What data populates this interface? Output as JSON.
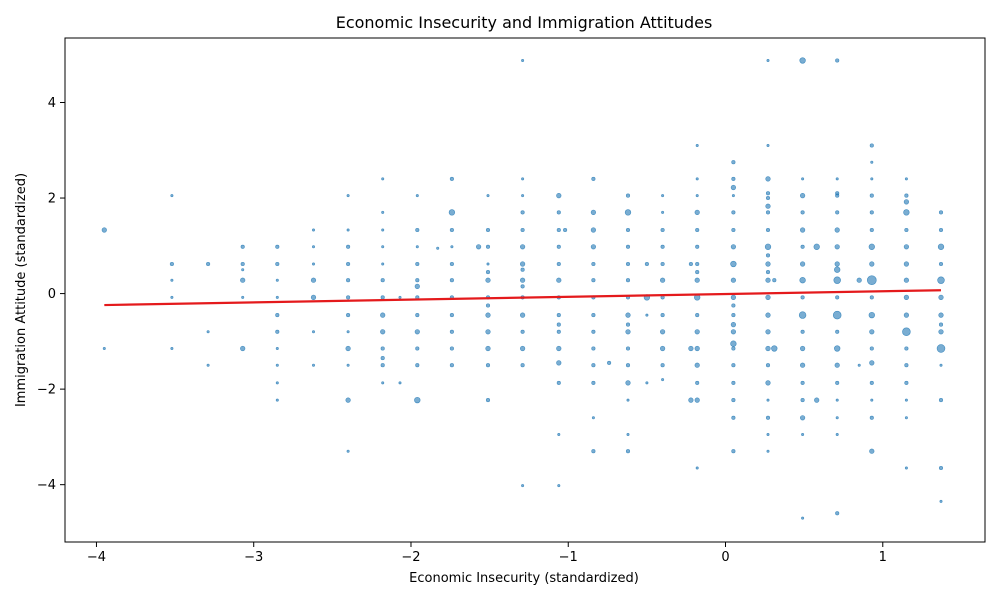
{
  "chart_data": {
    "type": "scatter",
    "title": "Economic Insecurity and Immigration Attitudes",
    "xlabel": "Economic Insecurity (standardized)",
    "ylabel": "Immigration Attitude (standardized)",
    "xlim": [
      -4.2,
      1.65
    ],
    "ylim": [
      -5.2,
      5.35
    ],
    "xticks": [
      -4,
      -3,
      -2,
      -1,
      0,
      1
    ],
    "yticks": [
      -4,
      -2,
      0,
      2,
      4
    ],
    "xtick_labels": [
      "−4",
      "−3",
      "−2",
      "−1",
      "0",
      "1"
    ],
    "ytick_labels": [
      "−4",
      "−2",
      "0",
      "2",
      "4"
    ],
    "grid": false,
    "point_color": "#1f77b4",
    "line_color": "#e41a1c",
    "points": [
      [
        -3.95,
        1.33,
        3
      ],
      [
        -3.95,
        -1.15,
        1
      ],
      [
        -3.52,
        2.05,
        1
      ],
      [
        -3.52,
        0.62,
        2
      ],
      [
        -3.52,
        0.28,
        1
      ],
      [
        -3.52,
        -0.08,
        1
      ],
      [
        -3.52,
        -1.15,
        1
      ],
      [
        -3.29,
        0.62,
        2
      ],
      [
        -3.29,
        -0.8,
        1
      ],
      [
        -3.29,
        -1.5,
        1
      ],
      [
        -3.07,
        0.98,
        2
      ],
      [
        -3.07,
        0.62,
        2
      ],
      [
        -3.07,
        0.5,
        1
      ],
      [
        -3.07,
        0.28,
        3
      ],
      [
        -3.07,
        -0.08,
        1
      ],
      [
        -3.07,
        -1.15,
        3
      ],
      [
        -2.85,
        0.98,
        2
      ],
      [
        -2.85,
        0.62,
        2
      ],
      [
        -2.85,
        0.28,
        1
      ],
      [
        -2.85,
        -0.08,
        1
      ],
      [
        -2.85,
        -0.45,
        2
      ],
      [
        -2.85,
        -0.8,
        2
      ],
      [
        -2.85,
        -1.15,
        1
      ],
      [
        -2.85,
        -1.5,
        1
      ],
      [
        -2.85,
        -1.87,
        1
      ],
      [
        -2.85,
        -2.23,
        1
      ],
      [
        -2.62,
        1.33,
        1
      ],
      [
        -2.62,
        0.98,
        1
      ],
      [
        -2.62,
        0.62,
        1
      ],
      [
        -2.62,
        0.28,
        3
      ],
      [
        -2.62,
        -0.08,
        3
      ],
      [
        -2.62,
        -0.8,
        1
      ],
      [
        -2.62,
        -1.5,
        1
      ],
      [
        -2.4,
        2.05,
        1
      ],
      [
        -2.4,
        1.33,
        1
      ],
      [
        -2.4,
        0.98,
        2
      ],
      [
        -2.4,
        0.62,
        2
      ],
      [
        -2.4,
        0.28,
        2
      ],
      [
        -2.4,
        -0.08,
        2
      ],
      [
        -2.4,
        -0.45,
        2
      ],
      [
        -2.4,
        -0.8,
        1
      ],
      [
        -2.4,
        -1.15,
        3
      ],
      [
        -2.4,
        -1.5,
        1
      ],
      [
        -2.4,
        -2.23,
        3
      ],
      [
        -2.4,
        -3.3,
        1
      ],
      [
        -2.18,
        2.4,
        1
      ],
      [
        -2.18,
        1.7,
        1
      ],
      [
        -2.18,
        1.33,
        1
      ],
      [
        -2.18,
        0.98,
        1
      ],
      [
        -2.18,
        0.62,
        1
      ],
      [
        -2.18,
        0.28,
        2
      ],
      [
        -2.18,
        -0.08,
        2
      ],
      [
        -2.18,
        -0.45,
        3
      ],
      [
        -2.18,
        -0.8,
        3
      ],
      [
        -2.18,
        -1.15,
        2
      ],
      [
        -2.18,
        -1.35,
        2
      ],
      [
        -2.18,
        -1.5,
        2
      ],
      [
        -2.18,
        -1.87,
        1
      ],
      [
        -2.07,
        -0.08,
        1
      ],
      [
        -2.07,
        -1.87,
        1
      ],
      [
        -1.96,
        2.05,
        1
      ],
      [
        -1.96,
        1.33,
        2
      ],
      [
        -1.96,
        0.98,
        1
      ],
      [
        -1.96,
        0.62,
        2
      ],
      [
        -1.96,
        0.28,
        2
      ],
      [
        -1.96,
        0.15,
        3
      ],
      [
        -1.96,
        -0.08,
        2
      ],
      [
        -1.96,
        -0.45,
        2
      ],
      [
        -1.96,
        -0.8,
        3
      ],
      [
        -1.96,
        -1.15,
        2
      ],
      [
        -1.96,
        -1.5,
        2
      ],
      [
        -1.96,
        -2.23,
        4
      ],
      [
        -1.83,
        0.95,
        1
      ],
      [
        -1.74,
        2.4,
        2
      ],
      [
        -1.74,
        1.7,
        4
      ],
      [
        -1.74,
        1.33,
        2
      ],
      [
        -1.74,
        0.98,
        1
      ],
      [
        -1.74,
        0.62,
        2
      ],
      [
        -1.74,
        0.28,
        2
      ],
      [
        -1.74,
        -0.08,
        2
      ],
      [
        -1.74,
        -0.45,
        2
      ],
      [
        -1.74,
        -0.8,
        2
      ],
      [
        -1.74,
        -1.15,
        2
      ],
      [
        -1.74,
        -1.5,
        2
      ],
      [
        -1.57,
        0.98,
        3
      ],
      [
        -1.51,
        2.05,
        1
      ],
      [
        -1.51,
        1.33,
        2
      ],
      [
        -1.51,
        0.98,
        2
      ],
      [
        -1.51,
        0.62,
        1
      ],
      [
        -1.51,
        0.45,
        2
      ],
      [
        -1.51,
        0.28,
        3
      ],
      [
        -1.51,
        -0.08,
        2
      ],
      [
        -1.51,
        -0.25,
        2
      ],
      [
        -1.51,
        -0.45,
        3
      ],
      [
        -1.51,
        -0.8,
        3
      ],
      [
        -1.51,
        -1.15,
        3
      ],
      [
        -1.51,
        -1.5,
        2
      ],
      [
        -1.51,
        -2.23,
        2
      ],
      [
        -1.29,
        4.88,
        1
      ],
      [
        -1.29,
        2.4,
        1
      ],
      [
        -1.29,
        2.05,
        1
      ],
      [
        -1.29,
        1.7,
        2
      ],
      [
        -1.29,
        1.33,
        2
      ],
      [
        -1.29,
        0.98,
        3
      ],
      [
        -1.29,
        0.62,
        3
      ],
      [
        -1.29,
        0.5,
        2
      ],
      [
        -1.29,
        0.28,
        3
      ],
      [
        -1.29,
        0.15,
        2
      ],
      [
        -1.29,
        -0.08,
        2
      ],
      [
        -1.29,
        -0.45,
        3
      ],
      [
        -1.29,
        -0.8,
        2
      ],
      [
        -1.29,
        -1.15,
        3
      ],
      [
        -1.29,
        -1.5,
        2
      ],
      [
        -1.29,
        -4.02,
        1
      ],
      [
        -1.06,
        2.05,
        3
      ],
      [
        -1.06,
        1.7,
        2
      ],
      [
        -1.06,
        1.33,
        2
      ],
      [
        -1.06,
        0.98,
        2
      ],
      [
        -1.06,
        0.62,
        2
      ],
      [
        -1.06,
        0.28,
        3
      ],
      [
        -1.06,
        -0.08,
        2
      ],
      [
        -1.06,
        -0.45,
        2
      ],
      [
        -1.06,
        -0.65,
        2
      ],
      [
        -1.06,
        -0.8,
        2
      ],
      [
        -1.06,
        -1.15,
        3
      ],
      [
        -1.06,
        -1.45,
        3
      ],
      [
        -1.06,
        -1.87,
        2
      ],
      [
        -1.06,
        -2.95,
        1
      ],
      [
        -1.06,
        -4.02,
        1
      ],
      [
        -1.02,
        1.33,
        2
      ],
      [
        -0.84,
        2.4,
        2
      ],
      [
        -0.84,
        1.7,
        3
      ],
      [
        -0.84,
        1.33,
        3
      ],
      [
        -0.84,
        0.98,
        3
      ],
      [
        -0.84,
        0.62,
        2
      ],
      [
        -0.84,
        0.28,
        2
      ],
      [
        -0.84,
        -0.08,
        2
      ],
      [
        -0.84,
        -0.45,
        2
      ],
      [
        -0.84,
        -0.8,
        2
      ],
      [
        -0.84,
        -1.15,
        2
      ],
      [
        -0.84,
        -1.5,
        2
      ],
      [
        -0.84,
        -1.87,
        2
      ],
      [
        -0.84,
        -2.6,
        1
      ],
      [
        -0.84,
        -3.3,
        2
      ],
      [
        -0.74,
        -1.45,
        2
      ],
      [
        -0.62,
        2.05,
        2
      ],
      [
        -0.62,
        1.7,
        4
      ],
      [
        -0.62,
        1.33,
        2
      ],
      [
        -0.62,
        0.98,
        2
      ],
      [
        -0.62,
        0.62,
        2
      ],
      [
        -0.62,
        0.28,
        2
      ],
      [
        -0.62,
        -0.08,
        2
      ],
      [
        -0.62,
        -0.45,
        3
      ],
      [
        -0.62,
        -0.65,
        2
      ],
      [
        -0.62,
        -0.8,
        3
      ],
      [
        -0.62,
        -1.15,
        2
      ],
      [
        -0.62,
        -1.5,
        2
      ],
      [
        -0.62,
        -1.87,
        3
      ],
      [
        -0.62,
        -2.23,
        1
      ],
      [
        -0.62,
        -2.95,
        1
      ],
      [
        -0.62,
        -3.3,
        2
      ],
      [
        -0.5,
        0.62,
        2
      ],
      [
        -0.5,
        -0.08,
        4
      ],
      [
        -0.5,
        -0.45,
        1
      ],
      [
        -0.5,
        -1.87,
        1
      ],
      [
        -0.4,
        2.05,
        1
      ],
      [
        -0.4,
        1.7,
        1
      ],
      [
        -0.4,
        1.33,
        2
      ],
      [
        -0.4,
        0.98,
        2
      ],
      [
        -0.4,
        0.62,
        2
      ],
      [
        -0.4,
        0.28,
        3
      ],
      [
        -0.4,
        -0.08,
        2
      ],
      [
        -0.4,
        -0.45,
        2
      ],
      [
        -0.4,
        -0.8,
        3
      ],
      [
        -0.4,
        -1.15,
        3
      ],
      [
        -0.4,
        -1.5,
        2
      ],
      [
        -0.4,
        -1.8,
        1
      ],
      [
        -0.22,
        0.62,
        2
      ],
      [
        -0.22,
        -1.15,
        3
      ],
      [
        -0.22,
        -2.23,
        3
      ],
      [
        -0.18,
        3.1,
        1
      ],
      [
        -0.18,
        2.4,
        1
      ],
      [
        -0.18,
        2.05,
        1
      ],
      [
        -0.18,
        1.7,
        3
      ],
      [
        -0.18,
        1.33,
        2
      ],
      [
        -0.18,
        0.98,
        2
      ],
      [
        -0.18,
        0.62,
        2
      ],
      [
        -0.18,
        0.45,
        2
      ],
      [
        -0.18,
        0.28,
        3
      ],
      [
        -0.18,
        -0.08,
        4
      ],
      [
        -0.18,
        -0.45,
        2
      ],
      [
        -0.18,
        -0.8,
        3
      ],
      [
        -0.18,
        -1.15,
        3
      ],
      [
        -0.18,
        -1.5,
        3
      ],
      [
        -0.18,
        -1.87,
        2
      ],
      [
        -0.18,
        -2.23,
        3
      ],
      [
        -0.18,
        -3.65,
        1
      ],
      [
        0.05,
        2.75,
        2
      ],
      [
        0.05,
        2.4,
        2
      ],
      [
        0.05,
        2.22,
        3
      ],
      [
        0.05,
        2.05,
        1
      ],
      [
        0.05,
        1.7,
        2
      ],
      [
        0.05,
        1.33,
        2
      ],
      [
        0.05,
        0.98,
        3
      ],
      [
        0.05,
        0.62,
        4
      ],
      [
        0.05,
        0.28,
        3
      ],
      [
        0.05,
        -0.08,
        3
      ],
      [
        0.05,
        -0.25,
        2
      ],
      [
        0.05,
        -0.45,
        2
      ],
      [
        0.05,
        -0.65,
        3
      ],
      [
        0.05,
        -0.8,
        3
      ],
      [
        0.05,
        -1.05,
        4
      ],
      [
        0.05,
        -1.15,
        2
      ],
      [
        0.05,
        -1.5,
        2
      ],
      [
        0.05,
        -1.87,
        2
      ],
      [
        0.05,
        -2.23,
        2
      ],
      [
        0.05,
        -2.6,
        2
      ],
      [
        0.05,
        -3.3,
        2
      ],
      [
        0.27,
        4.88,
        1
      ],
      [
        0.27,
        3.1,
        1
      ],
      [
        0.27,
        2.4,
        3
      ],
      [
        0.27,
        2.1,
        2
      ],
      [
        0.27,
        2.0,
        2
      ],
      [
        0.27,
        1.83,
        3
      ],
      [
        0.27,
        1.7,
        2
      ],
      [
        0.27,
        1.33,
        2
      ],
      [
        0.27,
        0.98,
        4
      ],
      [
        0.27,
        0.8,
        2
      ],
      [
        0.27,
        0.62,
        3
      ],
      [
        0.27,
        0.45,
        2
      ],
      [
        0.27,
        0.28,
        3
      ],
      [
        0.27,
        -0.08,
        3
      ],
      [
        0.27,
        -0.45,
        3
      ],
      [
        0.27,
        -0.8,
        3
      ],
      [
        0.27,
        -1.15,
        3
      ],
      [
        0.27,
        -1.5,
        2
      ],
      [
        0.27,
        -1.87,
        3
      ],
      [
        0.27,
        -2.23,
        1
      ],
      [
        0.27,
        -2.6,
        2
      ],
      [
        0.27,
        -2.95,
        1
      ],
      [
        0.27,
        -3.3,
        1
      ],
      [
        0.31,
        0.28,
        2
      ],
      [
        0.31,
        -1.15,
        4
      ],
      [
        0.49,
        4.88,
        4
      ],
      [
        0.49,
        2.4,
        1
      ],
      [
        0.49,
        2.05,
        3
      ],
      [
        0.49,
        1.7,
        2
      ],
      [
        0.49,
        1.33,
        3
      ],
      [
        0.49,
        0.98,
        2
      ],
      [
        0.49,
        0.62,
        3
      ],
      [
        0.49,
        0.28,
        4
      ],
      [
        0.49,
        -0.08,
        2
      ],
      [
        0.49,
        -0.45,
        5
      ],
      [
        0.49,
        -0.8,
        2
      ],
      [
        0.49,
        -1.15,
        3
      ],
      [
        0.49,
        -1.5,
        3
      ],
      [
        0.49,
        -1.87,
        2
      ],
      [
        0.49,
        -2.23,
        2
      ],
      [
        0.49,
        -2.6,
        3
      ],
      [
        0.49,
        -2.95,
        1
      ],
      [
        0.49,
        -4.7,
        1
      ],
      [
        0.58,
        0.98,
        4
      ],
      [
        0.58,
        -2.23,
        3
      ],
      [
        0.71,
        4.88,
        2
      ],
      [
        0.71,
        2.4,
        1
      ],
      [
        0.71,
        2.1,
        2
      ],
      [
        0.71,
        2.05,
        2
      ],
      [
        0.71,
        1.7,
        2
      ],
      [
        0.71,
        1.33,
        3
      ],
      [
        0.71,
        0.98,
        3
      ],
      [
        0.71,
        0.62,
        3
      ],
      [
        0.71,
        0.5,
        4
      ],
      [
        0.71,
        0.28,
        5
      ],
      [
        0.71,
        -0.08,
        2
      ],
      [
        0.71,
        -0.45,
        6
      ],
      [
        0.71,
        -0.8,
        2
      ],
      [
        0.71,
        -1.15,
        4
      ],
      [
        0.71,
        -1.5,
        3
      ],
      [
        0.71,
        -1.87,
        2
      ],
      [
        0.71,
        -2.23,
        1
      ],
      [
        0.71,
        -2.6,
        1
      ],
      [
        0.71,
        -2.95,
        1
      ],
      [
        0.71,
        -4.6,
        2
      ],
      [
        0.85,
        0.28,
        3
      ],
      [
        0.85,
        -1.5,
        1
      ],
      [
        0.93,
        3.1,
        2
      ],
      [
        0.93,
        2.75,
        1
      ],
      [
        0.93,
        2.4,
        1
      ],
      [
        0.93,
        2.05,
        2
      ],
      [
        0.93,
        1.7,
        2
      ],
      [
        0.93,
        1.33,
        2
      ],
      [
        0.93,
        0.98,
        4
      ],
      [
        0.93,
        0.62,
        3
      ],
      [
        0.93,
        0.28,
        7
      ],
      [
        0.93,
        -0.08,
        2
      ],
      [
        0.93,
        -0.45,
        4
      ],
      [
        0.93,
        -0.8,
        3
      ],
      [
        0.93,
        -1.15,
        2
      ],
      [
        0.93,
        -1.45,
        3
      ],
      [
        0.93,
        -1.87,
        2
      ],
      [
        0.93,
        -2.23,
        1
      ],
      [
        0.93,
        -2.6,
        2
      ],
      [
        0.93,
        -3.3,
        3
      ],
      [
        1.15,
        2.4,
        1
      ],
      [
        1.15,
        2.05,
        2
      ],
      [
        1.15,
        1.92,
        3
      ],
      [
        1.15,
        1.7,
        4
      ],
      [
        1.15,
        1.33,
        2
      ],
      [
        1.15,
        0.98,
        3
      ],
      [
        1.15,
        0.62,
        3
      ],
      [
        1.15,
        0.28,
        3
      ],
      [
        1.15,
        -0.08,
        3
      ],
      [
        1.15,
        -0.45,
        3
      ],
      [
        1.15,
        -0.8,
        6
      ],
      [
        1.15,
        -1.15,
        2
      ],
      [
        1.15,
        -1.5,
        2
      ],
      [
        1.15,
        -1.87,
        2
      ],
      [
        1.15,
        -2.23,
        1
      ],
      [
        1.15,
        -2.6,
        1
      ],
      [
        1.15,
        -3.65,
        1
      ],
      [
        1.37,
        1.7,
        2
      ],
      [
        1.37,
        1.33,
        2
      ],
      [
        1.37,
        0.98,
        4
      ],
      [
        1.37,
        0.62,
        2
      ],
      [
        1.37,
        0.28,
        5
      ],
      [
        1.37,
        -0.08,
        3
      ],
      [
        1.37,
        -0.45,
        3
      ],
      [
        1.37,
        -0.65,
        2
      ],
      [
        1.37,
        -0.8,
        3
      ],
      [
        1.37,
        -1.15,
        6
      ],
      [
        1.37,
        -1.5,
        1
      ],
      [
        1.37,
        -2.23,
        2
      ],
      [
        1.37,
        -3.65,
        2
      ],
      [
        1.37,
        -4.35,
        1
      ]
    ],
    "trend_line": {
      "x": [
        -3.95,
        1.37
      ],
      "y": [
        -0.24,
        0.07
      ]
    }
  }
}
